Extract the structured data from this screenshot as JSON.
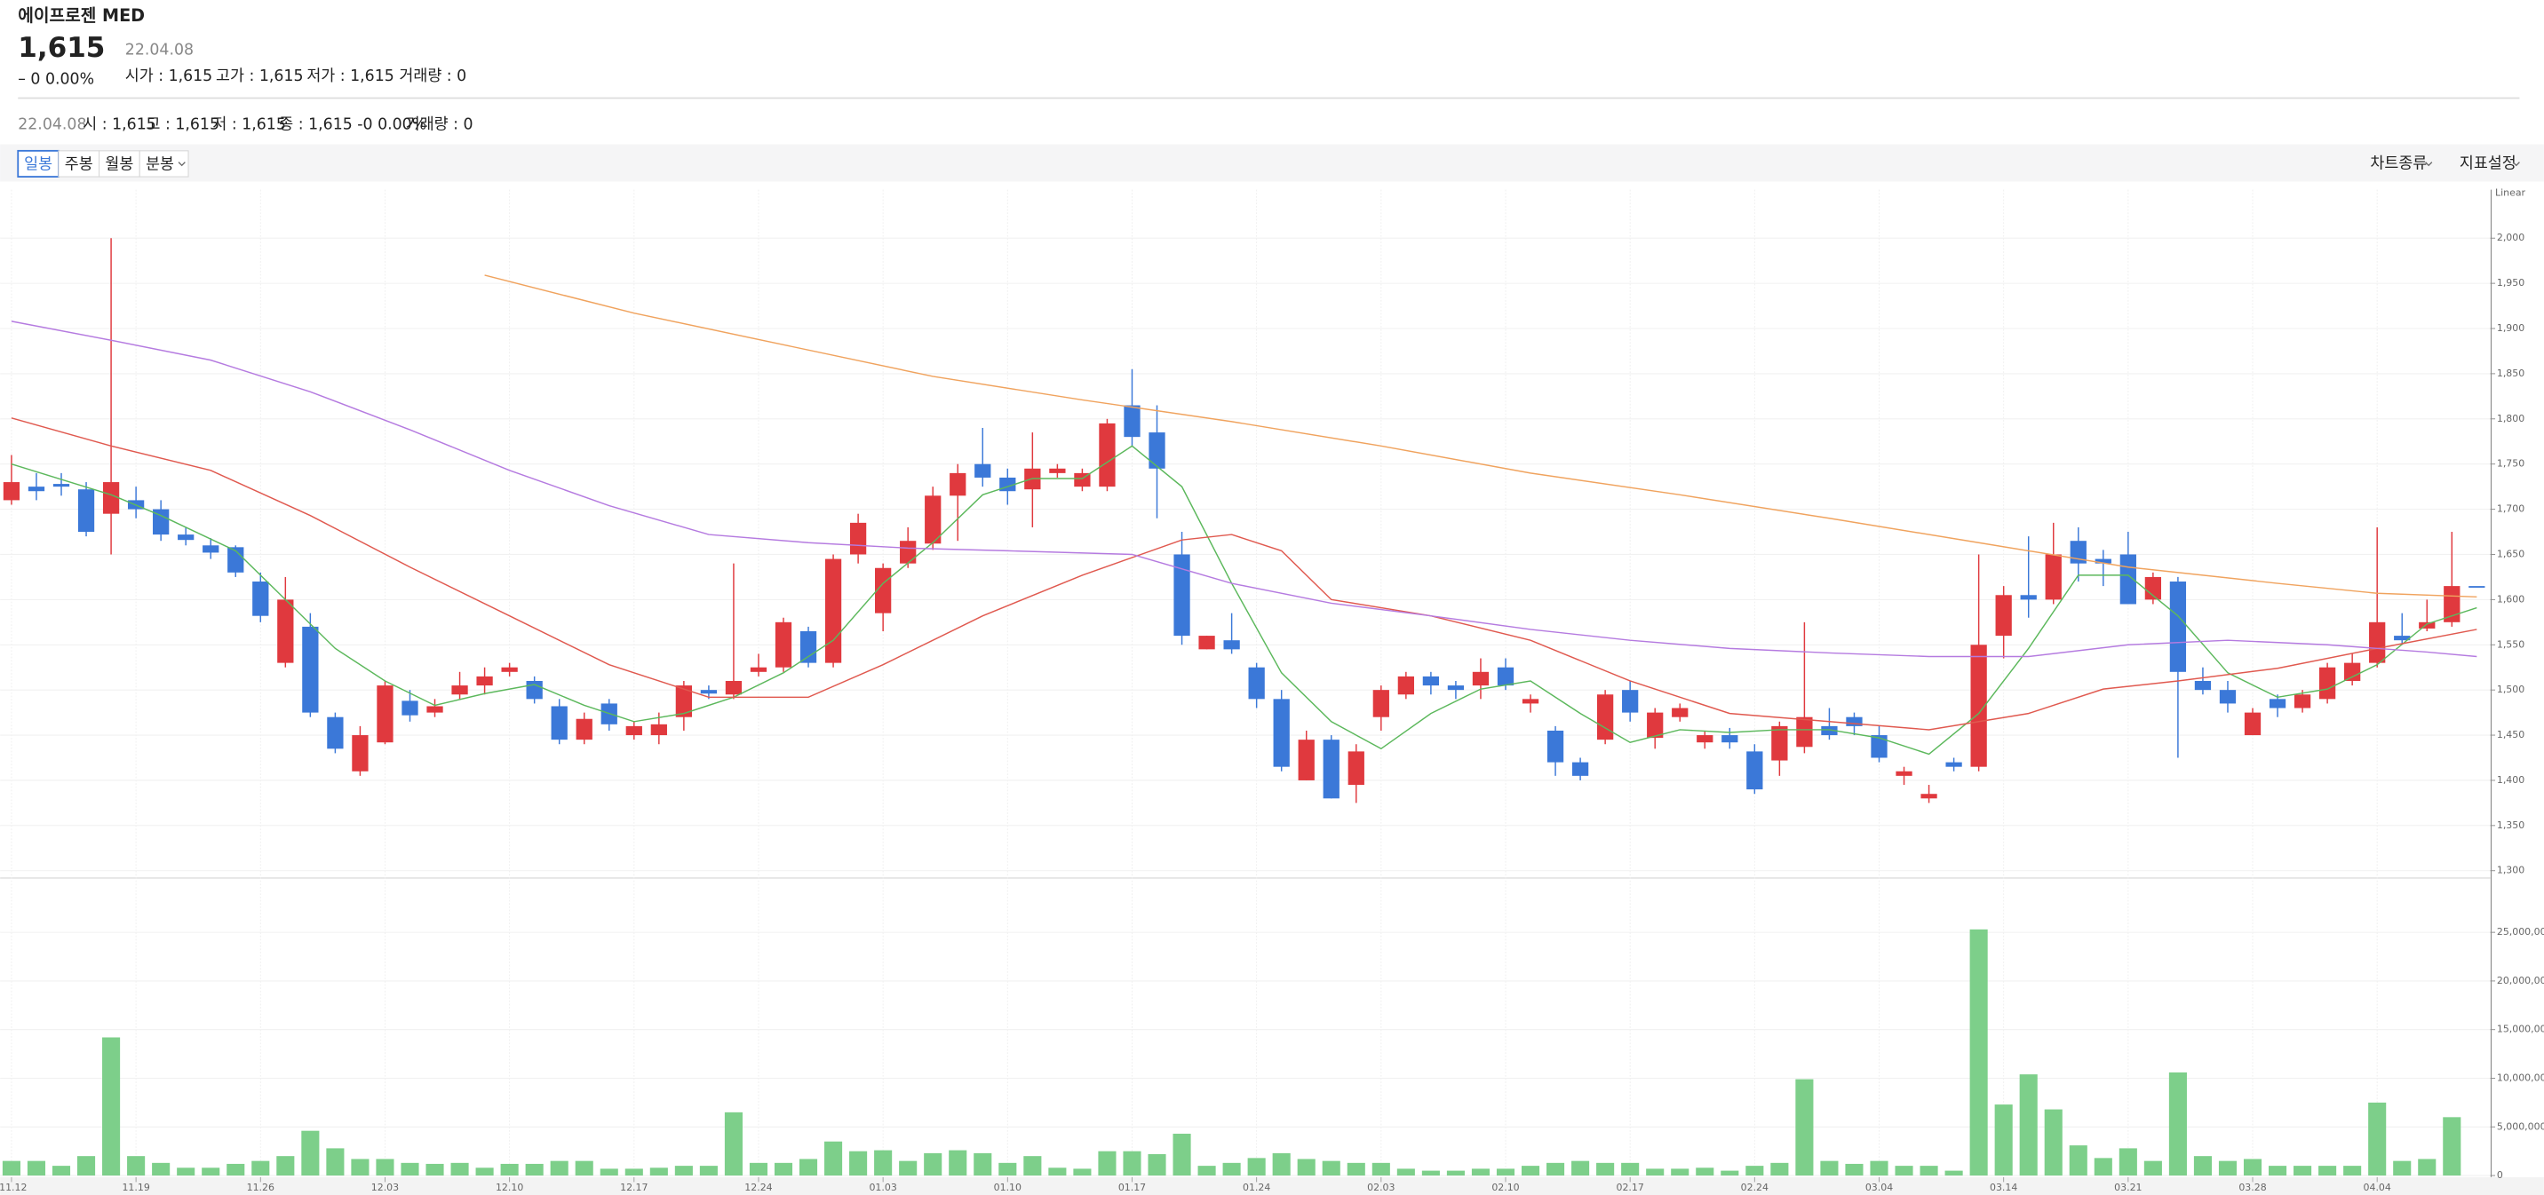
{
  "header": {
    "title": "에이프로젠 MED",
    "price": "1,615",
    "date": "22.04.08",
    "change": "– 0 0.00%",
    "stats": [
      "시가 : 1,615",
      "고가 : 1,615",
      "저가 : 1,615",
      "거래량 : 0"
    ]
  },
  "info_bar": {
    "date": "22.04.08",
    "items": [
      "시 : 1,615",
      "고 : 1,615",
      "저 : 1,615",
      "종 : 1,615 -0 0.00%",
      "거래량 : 0"
    ]
  },
  "toolbar": {
    "periods": [
      "일봉",
      "주봉",
      "월봉",
      "분봉"
    ],
    "selected": 0,
    "menus": [
      "차트종류",
      "지표설정"
    ]
  },
  "chart_data": [
    {
      "type": "candlestick",
      "scale": "Linear",
      "up_color": "#e0393e",
      "down_color": "#3b78d8",
      "ylim": [
        1300,
        2050
      ],
      "yticks": [
        {
          "value": 1300,
          "label": "1,300"
        },
        {
          "value": 1350,
          "label": "1,350"
        },
        {
          "value": 1400,
          "label": "1,400"
        },
        {
          "value": 1450,
          "label": "1,450"
        },
        {
          "value": 1500,
          "label": "1,500"
        },
        {
          "value": 1550,
          "label": "1,550"
        },
        {
          "value": 1600,
          "label": "1,600"
        },
        {
          "value": 1650,
          "label": "1,650"
        },
        {
          "value": 1700,
          "label": "1,700"
        },
        {
          "value": 1750,
          "label": "1,750"
        },
        {
          "value": 1800,
          "label": "1,800"
        },
        {
          "value": 1850,
          "label": "1,850"
        },
        {
          "value": 1900,
          "label": "1,900"
        },
        {
          "value": 1950,
          "label": "1,950"
        },
        {
          "value": 2000,
          "label": "2,000"
        }
      ],
      "open": [
        1710,
        1725,
        1728,
        1722,
        1695,
        1710,
        1700,
        1672,
        1660,
        1658,
        1620,
        1530,
        1570,
        1470,
        1410,
        1442,
        1488,
        1475,
        1495,
        1505,
        1520,
        1510,
        1482,
        1445,
        1485,
        1450,
        1450,
        1470,
        1500,
        1495,
        1520,
        1525,
        1565,
        1530,
        1650,
        1585,
        1640,
        1662,
        1715,
        1750,
        1735,
        1722,
        1740,
        1725,
        1725,
        1815,
        1785,
        1650,
        1545,
        1555,
        1525,
        1490,
        1400,
        1445,
        1395,
        1470,
        1495,
        1515,
        1505,
        1505,
        1525,
        1485,
        1455,
        1420,
        1445,
        1500,
        1447,
        1470,
        1442,
        1450,
        1432,
        1422,
        1437,
        1460,
        1470,
        1450,
        1405,
        1380,
        1420,
        1415,
        1560,
        1605,
        1600,
        1665,
        1645,
        1650,
        1600,
        1620,
        1510,
        1500,
        1450,
        1490,
        1480,
        1490,
        1510,
        1530,
        1560,
        1568,
        1575,
        1615
      ],
      "high": [
        1760,
        1740,
        1740,
        1730,
        2000,
        1725,
        1710,
        1680,
        1668,
        1660,
        1630,
        1625,
        1585,
        1475,
        1460,
        1510,
        1500,
        1490,
        1520,
        1525,
        1530,
        1515,
        1490,
        1475,
        1490,
        1465,
        1475,
        1510,
        1505,
        1640,
        1540,
        1580,
        1570,
        1650,
        1695,
        1640,
        1680,
        1725,
        1750,
        1790,
        1745,
        1785,
        1750,
        1745,
        1800,
        1855,
        1815,
        1675,
        1560,
        1585,
        1530,
        1500,
        1455,
        1450,
        1440,
        1505,
        1520,
        1520,
        1510,
        1535,
        1535,
        1495,
        1460,
        1425,
        1500,
        1510,
        1480,
        1485,
        1455,
        1458,
        1440,
        1465,
        1575,
        1480,
        1475,
        1460,
        1415,
        1395,
        1425,
        1650,
        1615,
        1670,
        1685,
        1680,
        1655,
        1675,
        1630,
        1625,
        1525,
        1510,
        1480,
        1495,
        1500,
        1530,
        1540,
        1680,
        1585,
        1600,
        1675,
        1615
      ],
      "low": [
        1705,
        1710,
        1715,
        1670,
        1650,
        1690,
        1665,
        1660,
        1645,
        1625,
        1575,
        1525,
        1470,
        1430,
        1405,
        1440,
        1465,
        1470,
        1490,
        1495,
        1515,
        1485,
        1440,
        1440,
        1455,
        1445,
        1440,
        1455,
        1490,
        1490,
        1515,
        1520,
        1525,
        1525,
        1640,
        1565,
        1635,
        1655,
        1665,
        1725,
        1705,
        1680,
        1735,
        1720,
        1720,
        1770,
        1690,
        1550,
        1545,
        1540,
        1480,
        1410,
        1400,
        1380,
        1375,
        1455,
        1490,
        1495,
        1490,
        1490,
        1500,
        1475,
        1405,
        1400,
        1440,
        1465,
        1435,
        1465,
        1435,
        1435,
        1385,
        1405,
        1430,
        1445,
        1450,
        1420,
        1395,
        1375,
        1410,
        1410,
        1535,
        1580,
        1595,
        1620,
        1615,
        1595,
        1595,
        1425,
        1495,
        1475,
        1450,
        1470,
        1475,
        1485,
        1505,
        1525,
        1550,
        1565,
        1570,
        1615
      ],
      "close": [
        1730,
        1720,
        1725,
        1675,
        1730,
        1700,
        1672,
        1666,
        1652,
        1630,
        1582,
        1600,
        1475,
        1435,
        1450,
        1505,
        1472,
        1482,
        1505,
        1515,
        1525,
        1490,
        1445,
        1468,
        1462,
        1460,
        1462,
        1505,
        1496,
        1510,
        1525,
        1575,
        1530,
        1645,
        1685,
        1635,
        1665,
        1715,
        1740,
        1735,
        1720,
        1745,
        1745,
        1740,
        1795,
        1780,
        1745,
        1560,
        1560,
        1545,
        1490,
        1415,
        1445,
        1380,
        1432,
        1500,
        1515,
        1505,
        1500,
        1520,
        1505,
        1490,
        1420,
        1405,
        1495,
        1475,
        1475,
        1480,
        1450,
        1442,
        1390,
        1460,
        1470,
        1450,
        1460,
        1425,
        1410,
        1385,
        1415,
        1550,
        1605,
        1600,
        1650,
        1640,
        1640,
        1595,
        1625,
        1520,
        1500,
        1485,
        1475,
        1480,
        1495,
        1525,
        1530,
        1575,
        1555,
        1575,
        1615,
        1615
      ],
      "lines": [
        {
          "color": "#5cb85c",
          "x": [
            0,
            4,
            6,
            9,
            11,
            13,
            15,
            17,
            19,
            21,
            23,
            25,
            27,
            29,
            31,
            33,
            35,
            37,
            39,
            41,
            43,
            45,
            47,
            49,
            51,
            53,
            55,
            57,
            59,
            61,
            63,
            65,
            67,
            69,
            71,
            73,
            75,
            77,
            79,
            81,
            83,
            85,
            87,
            89,
            91,
            93,
            95,
            97,
            99
          ],
          "values": [
            1750,
            1716,
            1693,
            1654,
            1600,
            1546,
            1510,
            1483,
            1496,
            1506,
            1483,
            1465,
            1474,
            1492,
            1519,
            1555,
            1618,
            1663,
            1716,
            1734,
            1734,
            1770,
            1725,
            1618,
            1519,
            1465,
            1435,
            1474,
            1501,
            1510,
            1474,
            1442,
            1456,
            1453,
            1456,
            1456,
            1447,
            1429,
            1474,
            1546,
            1627,
            1627,
            1582,
            1519,
            1492,
            1501,
            1528,
            1573,
            1591
          ]
        },
        {
          "color": "#e0594f",
          "x": [
            0,
            4,
            8,
            12,
            16,
            20,
            24,
            28,
            32,
            35,
            39,
            43,
            47,
            49,
            51,
            53,
            57,
            61,
            65,
            69,
            73,
            77,
            81,
            84,
            87,
            91,
            95,
            99
          ],
          "values": [
            1801,
            1770,
            1743,
            1693,
            1636,
            1582,
            1528,
            1492,
            1492,
            1528,
            1582,
            1627,
            1666,
            1672,
            1654,
            1600,
            1582,
            1555,
            1510,
            1474,
            1465,
            1456,
            1474,
            1501,
            1510,
            1524,
            1546,
            1567
          ]
        },
        {
          "color": "#b57be0",
          "x": [
            0,
            4,
            8,
            12,
            16,
            20,
            24,
            28,
            32,
            36,
            40,
            45,
            49,
            53,
            57,
            61,
            65,
            69,
            73,
            77,
            81,
            85,
            89,
            93,
            97,
            99
          ],
          "values": [
            1908,
            1887,
            1865,
            1830,
            1788,
            1743,
            1704,
            1672,
            1663,
            1657,
            1654,
            1650,
            1618,
            1596,
            1582,
            1567,
            1555,
            1546,
            1541,
            1537,
            1537,
            1550,
            1555,
            1550,
            1542,
            1537
          ]
        },
        {
          "color": "#f0a35e",
          "x": [
            19,
            25,
            31,
            37,
            43,
            49,
            55,
            61,
            67,
            73,
            79,
            85,
            91,
            95,
            99
          ],
          "values": [
            1959,
            1917,
            1882,
            1847,
            1821,
            1797,
            1770,
            1740,
            1716,
            1690,
            1663,
            1636,
            1618,
            1607,
            1603
          ]
        }
      ]
    },
    {
      "type": "bar",
      "color": "#7dcf8a",
      "ylim": [
        0,
        30000000
      ],
      "yticks": [
        0,
        {
          "value": 5000000,
          "label": "5,000,000"
        },
        {
          "value": 10000000,
          "label": "10,000,000"
        },
        {
          "value": 15000000,
          "label": "15,000,000"
        },
        {
          "value": 20000000,
          "label": "20,000,000"
        },
        {
          "value": 25000000,
          "label": "25,000,000"
        }
      ],
      "categories": [
        "11.12",
        null,
        null,
        null,
        null,
        "11.19",
        null,
        null,
        null,
        null,
        "11.26",
        null,
        null,
        null,
        null,
        "12.03",
        null,
        null,
        null,
        null,
        "12.10",
        null,
        null,
        null,
        null,
        "12.17",
        null,
        null,
        null,
        null,
        "12.24",
        null,
        null,
        null,
        null,
        "01.03",
        null,
        null,
        null,
        null,
        "01.10",
        null,
        null,
        null,
        null,
        "01.17",
        null,
        null,
        null,
        null,
        "01.24",
        null,
        null,
        null,
        null,
        "02.03",
        null,
        null,
        null,
        null,
        "02.10",
        null,
        null,
        null,
        null,
        "02.17",
        null,
        null,
        null,
        null,
        "02.24",
        null,
        null,
        null,
        null,
        "03.04",
        null,
        null,
        null,
        null,
        "03.14",
        null,
        null,
        null,
        null,
        "03.21",
        null,
        null,
        null,
        null,
        "03.28",
        null,
        null,
        null,
        null,
        "04.04",
        null,
        null,
        null,
        null
      ],
      "values": [
        1500000,
        1500000,
        1000000,
        2000000,
        14200000,
        2000000,
        1300000,
        800000,
        800000,
        1200000,
        1500000,
        2000000,
        4600000,
        2800000,
        1700000,
        1700000,
        1300000,
        1200000,
        1300000,
        800000,
        1200000,
        1200000,
        1500000,
        1500000,
        700000,
        700000,
        800000,
        1000000,
        1000000,
        6500000,
        1300000,
        1300000,
        1700000,
        3500000,
        2500000,
        2600000,
        1500000,
        2300000,
        2600000,
        2300000,
        1300000,
        2000000,
        800000,
        700000,
        2500000,
        2500000,
        2200000,
        4300000,
        1000000,
        1300000,
        1800000,
        2300000,
        1700000,
        1500000,
        1300000,
        1300000,
        700000,
        500000,
        500000,
        700000,
        700000,
        1000000,
        1300000,
        1500000,
        1300000,
        1300000,
        700000,
        700000,
        800000,
        500000,
        1000000,
        1300000,
        9900000,
        1500000,
        1200000,
        1500000,
        1000000,
        1000000,
        500000,
        25300000,
        7300000,
        10400000,
        6800000,
        3100000,
        1800000,
        2800000,
        1500000,
        10600000,
        2000000,
        1500000,
        1700000,
        1000000,
        1000000,
        1000000,
        1000000,
        7500000,
        1500000,
        1700000,
        6000000,
        0
      ]
    }
  ]
}
